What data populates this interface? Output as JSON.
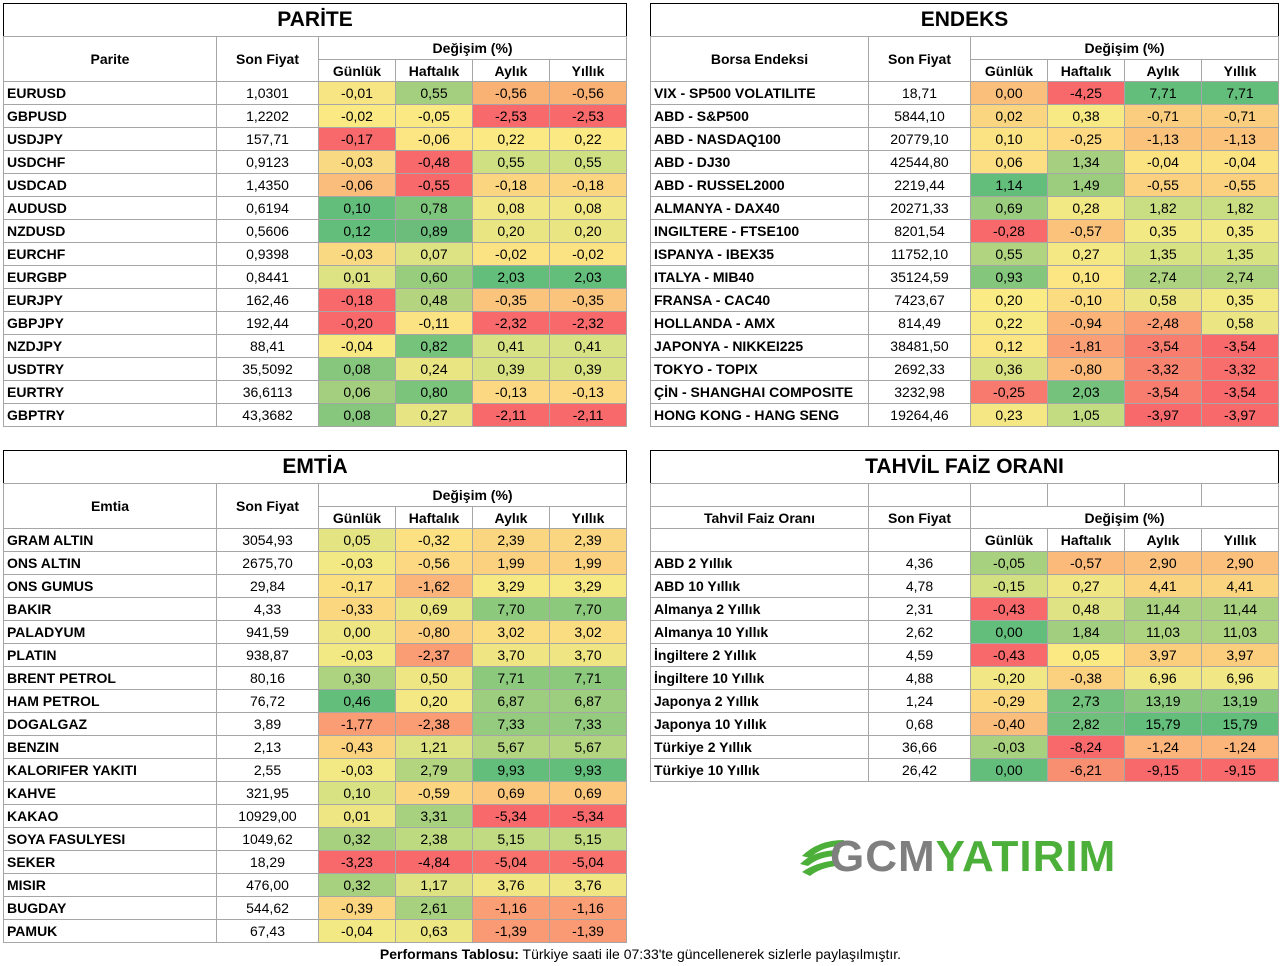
{
  "parite": {
    "title": "PARİTE",
    "col_name": "Parite",
    "col_price": "Son Fiyat",
    "col_change": "Değişim (%)",
    "periods": [
      "Günlük",
      "Haftalık",
      "Aylık",
      "Yıllık"
    ],
    "rows": [
      {
        "name": "EURUSD",
        "price": "1,0301",
        "vals": [
          "-0,01",
          "0,55",
          "-0,56",
          "-0,56"
        ],
        "colors": [
          "#f7e584",
          "#a4cf7f",
          "#f9b174",
          "#f9b174"
        ]
      },
      {
        "name": "GBPUSD",
        "price": "1,2202",
        "vals": [
          "-0,02",
          "-0,05",
          "-2,53",
          "-2,53"
        ],
        "colors": [
          "#fbea84",
          "#fbe983",
          "#f8696b",
          "#f8696b"
        ]
      },
      {
        "name": "USDJPY",
        "price": "157,71",
        "vals": [
          "-0,17",
          "-0,06",
          "0,22",
          "0,22"
        ],
        "colors": [
          "#f8696b",
          "#fbe683",
          "#fbe983",
          "#fbe983"
        ]
      },
      {
        "name": "USDCHF",
        "price": "0,9123",
        "vals": [
          "-0,03",
          "-0,48",
          "0,55",
          "0,55"
        ],
        "colors": [
          "#f9d981",
          "#f8696b",
          "#cfe082",
          "#cfe082"
        ]
      },
      {
        "name": "USDCAD",
        "price": "1,4350",
        "vals": [
          "-0,06",
          "-0,55",
          "-0,18",
          "-0,18"
        ],
        "colors": [
          "#fbbd7c",
          "#f8696b",
          "#fbd580",
          "#fbd580"
        ]
      },
      {
        "name": "AUDUSD",
        "price": "0,6194",
        "vals": [
          "0,10",
          "0,78",
          "0,08",
          "0,08"
        ],
        "colors": [
          "#63be7b",
          "#7ec57c",
          "#f1e784",
          "#f1e784"
        ]
      },
      {
        "name": "NZDUSD",
        "price": "0,5606",
        "vals": [
          "0,12",
          "0,89",
          "0,20",
          "0,20"
        ],
        "colors": [
          "#63be7b",
          "#6cbd7b",
          "#eae583",
          "#eae583"
        ]
      },
      {
        "name": "EURCHF",
        "price": "0,9398",
        "vals": [
          "-0,03",
          "0,07",
          "-0,02",
          "-0,02"
        ],
        "colors": [
          "#f9d981",
          "#dde283",
          "#fbe383",
          "#fbe383"
        ]
      },
      {
        "name": "EURGBP",
        "price": "0,8441",
        "vals": [
          "0,01",
          "0,60",
          "2,03",
          "2,03"
        ],
        "colors": [
          "#dde283",
          "#98cd7e",
          "#63be7b",
          "#63be7b"
        ]
      },
      {
        "name": "EURJPY",
        "price": "162,46",
        "vals": [
          "-0,18",
          "0,48",
          "-0,35",
          "-0,35"
        ],
        "colors": [
          "#f8696b",
          "#b4d480",
          "#fbc47d",
          "#fbc47d"
        ]
      },
      {
        "name": "GBPJPY",
        "price": "192,44",
        "vals": [
          "-0,20",
          "-0,11",
          "-2,32",
          "-2,32"
        ],
        "colors": [
          "#f8696b",
          "#fbe282",
          "#f8696b",
          "#f8696b"
        ]
      },
      {
        "name": "NZDJPY",
        "price": "88,41",
        "vals": [
          "-0,04",
          "0,82",
          "0,41",
          "0,41"
        ],
        "colors": [
          "#f9e983",
          "#76c37c",
          "#d6e283",
          "#d6e283"
        ]
      },
      {
        "name": "USDTRY",
        "price": "35,5092",
        "vals": [
          "0,08",
          "0,24",
          "0,39",
          "0,39"
        ],
        "colors": [
          "#86c77d",
          "#e9e583",
          "#d8e283",
          "#d8e283"
        ]
      },
      {
        "name": "EURTRY",
        "price": "36,6113",
        "vals": [
          "0,06",
          "0,80",
          "-0,13",
          "-0,13"
        ],
        "colors": [
          "#a4cf7f",
          "#7ac47c",
          "#fbd881",
          "#fbd881"
        ]
      },
      {
        "name": "GBPTRY",
        "price": "43,3682",
        "vals": [
          "0,08",
          "0,27",
          "-2,11",
          "-2,11"
        ],
        "colors": [
          "#86c77d",
          "#e6e483",
          "#f8696b",
          "#f8696b"
        ]
      }
    ]
  },
  "endeks": {
    "title": "ENDEKS",
    "col_name": "Borsa Endeksi",
    "col_price": "Son Fiyat",
    "col_change": "Değişim (%)",
    "periods": [
      "Günlük",
      "Haftalık",
      "Aylık",
      "Yıllık"
    ],
    "rows": [
      {
        "name": "VIX  - SP500 VOLATILITE",
        "price": "18,71",
        "vals": [
          "0,00",
          "-4,25",
          "7,71",
          "7,71"
        ],
        "colors": [
          "#fbbf7c",
          "#f8696b",
          "#63be7b",
          "#63be7b"
        ]
      },
      {
        "name": "ABD - S&P500",
        "price": "5844,10",
        "vals": [
          "0,02",
          "0,38",
          "-0,71",
          "-0,71"
        ],
        "colors": [
          "#fbd680",
          "#f7e984",
          "#fbcd7e",
          "#fbcd7e"
        ]
      },
      {
        "name": "ABD - NASDAQ100",
        "price": "20779,10",
        "vals": [
          "0,10",
          "-0,25",
          "-1,13",
          "-1,13"
        ],
        "colors": [
          "#fbe383",
          "#fdd982",
          "#fbc27c",
          "#fbc27c"
        ]
      },
      {
        "name": "ABD - DJ30",
        "price": "42544,80",
        "vals": [
          "0,06",
          "1,34",
          "-0,04",
          "-0,04"
        ],
        "colors": [
          "#fbdf82",
          "#a6d07f",
          "#fbe382",
          "#fbe382"
        ]
      },
      {
        "name": "ABD - RUSSEL2000",
        "price": "2219,44",
        "vals": [
          "1,14",
          "1,49",
          "-0,55",
          "-0,55"
        ],
        "colors": [
          "#63be7b",
          "#9ccd7e",
          "#fbd17f",
          "#fbd17f"
        ]
      },
      {
        "name": "ALMANYA - DAX40",
        "price": "20271,33",
        "vals": [
          "0,69",
          "0,28",
          "1,82",
          "1,82"
        ],
        "colors": [
          "#9bcd7e",
          "#f2e884",
          "#c9de82",
          "#c9de82"
        ]
      },
      {
        "name": "INGILTERE - FTSE100",
        "price": "8201,54",
        "vals": [
          "-0,28",
          "-0,57",
          "0,35",
          "0,35"
        ],
        "colors": [
          "#f8696b",
          "#fbc27c",
          "#f2e884",
          "#f2e884"
        ]
      },
      {
        "name": "ISPANYA - IBEX35",
        "price": "11752,10",
        "vals": [
          "0,55",
          "0,27",
          "1,35",
          "1,35"
        ],
        "colors": [
          "#b0d47f",
          "#f3e884",
          "#d7e283",
          "#d7e283"
        ]
      },
      {
        "name": "ITALYA - MIB40",
        "price": "35124,59",
        "vals": [
          "0,93",
          "0,10",
          "2,74",
          "2,74"
        ],
        "colors": [
          "#84c67c",
          "#fbe683",
          "#aed380",
          "#aed380"
        ]
      },
      {
        "name": "FRANSA - CAC40",
        "price": "7423,67",
        "vals": [
          "0,20",
          "-0,10",
          "0,58",
          "0,35"
        ],
        "colors": [
          "#fbeb84",
          "#fbdc81",
          "#ebe683",
          "#f2e884"
        ]
      },
      {
        "name": "HOLLANDA - AMX",
        "price": "814,49",
        "vals": [
          "0,22",
          "-0,94",
          "-2,48",
          "0,58"
        ],
        "colors": [
          "#f7e984",
          "#fbb378",
          "#fa9d74",
          "#ebe683"
        ]
      },
      {
        "name": "JAPONYA - NIKKEI225",
        "price": "38481,50",
        "vals": [
          "0,12",
          "-1,81",
          "-3,54",
          "-3,54"
        ],
        "colors": [
          "#fbe683",
          "#fa9e75",
          "#f87d6e",
          "#f8696b"
        ]
      },
      {
        "name": "TOKYO - TOPIX",
        "price": "2692,33",
        "vals": [
          "0,36",
          "-0,80",
          "-3,32",
          "-3,32"
        ],
        "colors": [
          "#d9e283",
          "#fbba7a",
          "#f8836f",
          "#f86e6c"
        ]
      },
      {
        "name": "ÇİN - SHANGHAI COMPOSITE",
        "price": "3232,98",
        "vals": [
          "-0,25",
          "2,03",
          "-3,54",
          "-3,54"
        ],
        "colors": [
          "#f87a6e",
          "#74c27c",
          "#f87d6e",
          "#f8696b"
        ]
      },
      {
        "name": "HONG KONG - HANG SENG",
        "price": "19264,46",
        "vals": [
          "0,23",
          "1,05",
          "-3,97",
          "-3,97"
        ],
        "colors": [
          "#f5e884",
          "#c4dc81",
          "#f8696b",
          "#f8696b"
        ]
      }
    ]
  },
  "emtia": {
    "title": "EMTİA",
    "col_name": "Emtia",
    "col_price": "Son Fiyat",
    "col_change": "Değişim (%)",
    "periods": [
      "Günlük",
      "Haftalık",
      "Aylık",
      "Yıllık"
    ],
    "rows": [
      {
        "name": "GRAM ALTIN",
        "price": "3054,93",
        "vals": [
          "0,05",
          "-0,32",
          "2,39",
          "2,39"
        ],
        "colors": [
          "#e5e483",
          "#fbe182",
          "#fbd680",
          "#fbd680"
        ]
      },
      {
        "name": "ONS ALTIN",
        "price": "2675,70",
        "vals": [
          "-0,03",
          "-0,56",
          "1,99",
          "1,99"
        ],
        "colors": [
          "#f2e884",
          "#fbd881",
          "#fbd17f",
          "#fbd17f"
        ]
      },
      {
        "name": "ONS GUMUS",
        "price": "29,84",
        "vals": [
          "-0,17",
          "-1,62",
          "3,29",
          "3,29"
        ],
        "colors": [
          "#fbe082",
          "#fbb57a",
          "#f6e984",
          "#f6e984"
        ]
      },
      {
        "name": "BAKIR",
        "price": "4,33",
        "vals": [
          "-0,33",
          "0,69",
          "7,70",
          "7,70"
        ],
        "colors": [
          "#fbd780",
          "#eae583",
          "#8cc97d",
          "#8cc97d"
        ]
      },
      {
        "name": "PALADYUM",
        "price": "941,59",
        "vals": [
          "0,00",
          "-0,80",
          "3,02",
          "3,02"
        ],
        "colors": [
          "#eee683",
          "#fbcf7f",
          "#fbdd81",
          "#fbdd81"
        ]
      },
      {
        "name": "PLATIN",
        "price": "938,87",
        "vals": [
          "-0,03",
          "-2,37",
          "3,70",
          "3,70"
        ],
        "colors": [
          "#f2e884",
          "#fa9c74",
          "#efe683",
          "#efe683"
        ]
      },
      {
        "name": "BRENT PETROL",
        "price": "80,16",
        "vals": [
          "0,30",
          "0,50",
          "7,71",
          "7,71"
        ],
        "colors": [
          "#aed380",
          "#eee683",
          "#8cc97d",
          "#8cc97d"
        ]
      },
      {
        "name": "HAM PETROL",
        "price": "76,72",
        "vals": [
          "0,46",
          "0,20",
          "6,87",
          "6,87"
        ],
        "colors": [
          "#63be7b",
          "#f4e884",
          "#9dcd7e",
          "#9dcd7e"
        ]
      },
      {
        "name": "DOGALGAZ",
        "price": "3,89",
        "vals": [
          "-1,77",
          "-2,38",
          "7,33",
          "7,33"
        ],
        "colors": [
          "#fa9c74",
          "#fa9c74",
          "#94cb7e",
          "#94cb7e"
        ]
      },
      {
        "name": "BENZIN",
        "price": "2,13",
        "vals": [
          "-0,43",
          "1,21",
          "5,67",
          "5,67"
        ],
        "colors": [
          "#fbd37f",
          "#dde283",
          "#b4d580",
          "#b4d580"
        ]
      },
      {
        "name": "KALORIFER YAKITI",
        "price": "2,55",
        "vals": [
          "-0,03",
          "2,79",
          "9,93",
          "9,93"
        ],
        "colors": [
          "#f2e884",
          "#b4d580",
          "#63be7b",
          "#63be7b"
        ]
      },
      {
        "name": "KAHVE",
        "price": "321,95",
        "vals": [
          "0,10",
          "-0,59",
          "0,69",
          "0,69"
        ],
        "colors": [
          "#d9e283",
          "#fbd580",
          "#fbc77d",
          "#fbc77d"
        ]
      },
      {
        "name": "KAKAO",
        "price": "10929,00",
        "vals": [
          "0,01",
          "3,31",
          "-5,34",
          "-5,34"
        ],
        "colors": [
          "#eee683",
          "#a8d17f",
          "#f8696b",
          "#f8696b"
        ]
      },
      {
        "name": "SOYA FASULYESI",
        "price": "1049,62",
        "vals": [
          "0,32",
          "2,38",
          "5,15",
          "5,15"
        ],
        "colors": [
          "#a8d17f",
          "#bdda81",
          "#c0db81",
          "#c0db81"
        ]
      },
      {
        "name": "SEKER",
        "price": "18,29",
        "vals": [
          "-3,23",
          "-4,84",
          "-5,04",
          "-5,04"
        ],
        "colors": [
          "#f8696b",
          "#f8696b",
          "#f8716c",
          "#f8716c"
        ]
      },
      {
        "name": "MISIR",
        "price": "476,00",
        "vals": [
          "0,32",
          "1,17",
          "3,76",
          "3,76"
        ],
        "colors": [
          "#a8d17f",
          "#dee283",
          "#f0e784",
          "#f0e784"
        ]
      },
      {
        "name": "BUGDAY",
        "price": "544,62",
        "vals": [
          "-0,39",
          "2,61",
          "-1,16",
          "-1,16"
        ],
        "colors": [
          "#fbd57f",
          "#a8d17f",
          "#fa9e75",
          "#fa9e75"
        ]
      },
      {
        "name": "PAMUK",
        "price": "67,43",
        "vals": [
          "-0,04",
          "0,63",
          "-1,39",
          "-1,39"
        ],
        "colors": [
          "#f2e884",
          "#ece683",
          "#fa9a74",
          "#fa9a74"
        ]
      }
    ]
  },
  "tahvil": {
    "title": "TAHVİL FAİZ ORANI",
    "col_name": "Tahvil Faiz Oranı",
    "col_price": "Son Fiyat",
    "col_change": "Değişim (%)",
    "periods": [
      "Günlük",
      "Haftalık",
      "Aylık",
      "Yıllık"
    ],
    "rows": [
      {
        "name": "ABD 2 Yıllık",
        "price": "4,36",
        "vals": [
          "-0,05",
          "-0,57",
          "2,90",
          "2,90"
        ],
        "colors": [
          "#a8d17f",
          "#fbb97a",
          "#fbc17c",
          "#fbc17c"
        ]
      },
      {
        "name": "ABD 10 Yıllık",
        "price": "4,78",
        "vals": [
          "-0,15",
          "0,27",
          "4,41",
          "4,41"
        ],
        "colors": [
          "#d2e082",
          "#f0e784",
          "#fbd480",
          "#fbd480"
        ]
      },
      {
        "name": "Almanya 2 Yıllık",
        "price": "2,31",
        "vals": [
          "-0,43",
          "0,48",
          "11,44",
          "11,44"
        ],
        "colors": [
          "#f8696b",
          "#dfe383",
          "#a9d17f",
          "#a9d17f"
        ]
      },
      {
        "name": "Almanya 10 Yıllık",
        "price": "2,62",
        "vals": [
          "0,00",
          "1,84",
          "11,03",
          "11,03"
        ],
        "colors": [
          "#63be7b",
          "#a2cf7f",
          "#aed380",
          "#aed380"
        ]
      },
      {
        "name": "İngiltere 2 Yıllık",
        "price": "4,59",
        "vals": [
          "-0,43",
          "0,05",
          "3,97",
          "3,97"
        ],
        "colors": [
          "#f8696b",
          "#fbe983",
          "#fbce7e",
          "#fbce7e"
        ]
      },
      {
        "name": "İngiltere 10 Yıllık",
        "price": "4,88",
        "vals": [
          "-0,20",
          "-0,38",
          "6,96",
          "6,96"
        ],
        "colors": [
          "#f1e784",
          "#fbd07f",
          "#f1e784",
          "#f1e784"
        ]
      },
      {
        "name": "Japonya 2 Yıllık",
        "price": "1,24",
        "vals": [
          "-0,29",
          "2,73",
          "13,19",
          "13,19"
        ],
        "colors": [
          "#fbd780",
          "#72c17c",
          "#8ac87d",
          "#8ac87d"
        ]
      },
      {
        "name": "Japonya 10 Yıllık",
        "price": "0,68",
        "vals": [
          "-0,40",
          "2,82",
          "15,79",
          "15,79"
        ],
        "colors": [
          "#fbbd7b",
          "#6ec07c",
          "#63be7b",
          "#63be7b"
        ]
      },
      {
        "name": "Türkiye 2 Yıllık",
        "price": "36,66",
        "vals": [
          "-0,03",
          "-8,24",
          "-1,24",
          "-1,24"
        ],
        "colors": [
          "#a8d17f",
          "#f8696b",
          "#fbb47a",
          "#fbb47a"
        ]
      },
      {
        "name": "Türkiye 10 Yıllık",
        "price": "26,42",
        "vals": [
          "0,00",
          "-6,21",
          "-9,15",
          "-9,15"
        ],
        "colors": [
          "#63be7b",
          "#f98f71",
          "#f8696b",
          "#f8696b"
        ]
      }
    ]
  },
  "logo": {
    "part1": "GCM",
    "part2": "YATIRIM",
    "color_gray": "#7f7f7f",
    "color_green": "#4caf3a"
  },
  "footer": {
    "label": "Performans Tablosu:",
    "text": " Türkiye saati ile 07:33'te güncellenerek sizlerle paylaşılmıştır."
  }
}
